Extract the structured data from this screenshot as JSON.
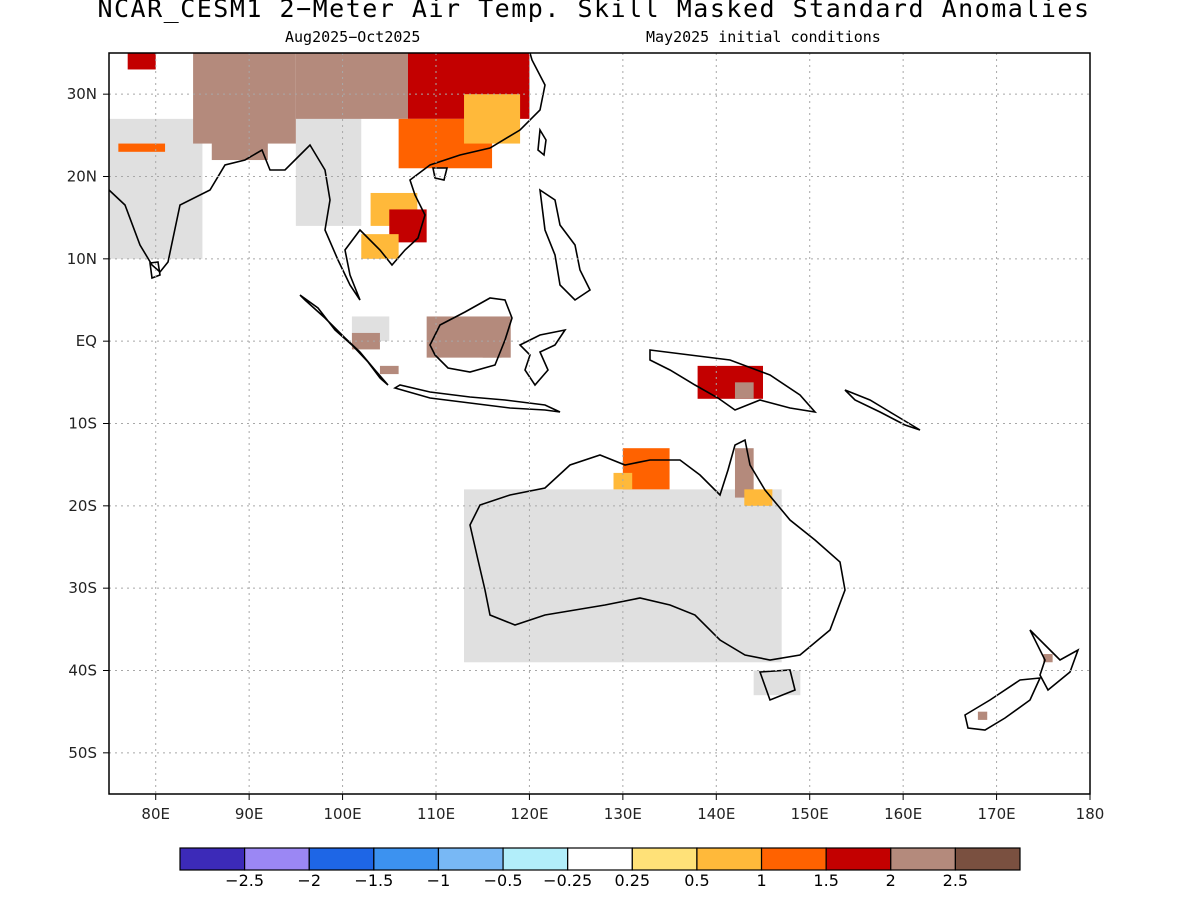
{
  "title": "NCAR_CESM1 2−Meter Air Temp. Skill Masked Standard Anomalies",
  "subtitle_left": "Aug2025−Oct2025",
  "subtitle_right": "May2025 initial conditions",
  "lat_labels": [
    "30N",
    "20N",
    "10N",
    "EQ",
    "10S",
    "20S",
    "30S",
    "40S",
    "50S"
  ],
  "lon_labels": [
    "80E",
    "90E",
    "100E",
    "110E",
    "120E",
    "130E",
    "140E",
    "150E",
    "160E",
    "170E",
    "180"
  ],
  "colorbar": {
    "colors": [
      "#3c2ab8",
      "#9b87f4",
      "#1e66e6",
      "#3c92f0",
      "#78b8f5",
      "#b2eefa",
      "#ffffff",
      "#ffe178",
      "#ffb93a",
      "#ff6200",
      "#c30000",
      "#b48a7c",
      "#7a5040"
    ],
    "labels": [
      "−2.5",
      "−2",
      "−1.5",
      "−1",
      "−0.5",
      "−0.25",
      "0.25",
      "0.5",
      "1",
      "1.5",
      "2",
      "2.5"
    ]
  },
  "chart_data": {
    "type": "heatmap",
    "variable": "2-Meter Air Temp. Skill Masked Standard Anomalies",
    "lon_range": [
      75,
      180
    ],
    "lat_range": [
      -55,
      35
    ],
    "levels": [
      -2.5,
      -2,
      -1.5,
      -1,
      -0.5,
      -0.25,
      0.25,
      0.5,
      1,
      1.5,
      2,
      2.5
    ],
    "masked_color": "#e0e0e0",
    "regions": [
      {
        "lon": [
          84,
          95
        ],
        "lat": [
          24,
          35
        ],
        "value": 2.2
      },
      {
        "lon": [
          95,
          107
        ],
        "lat": [
          27,
          35
        ],
        "value": 2.1
      },
      {
        "lon": [
          107,
          120
        ],
        "lat": [
          27,
          35
        ],
        "value": 1.6
      },
      {
        "lon": [
          106,
          116
        ],
        "lat": [
          21,
          27
        ],
        "value": 1.4
      },
      {
        "lon": [
          113,
          119
        ],
        "lat": [
          24,
          30
        ],
        "value": 0.8
      },
      {
        "lon": [
          86,
          92
        ],
        "lat": [
          22,
          25
        ],
        "value": 2.0
      },
      {
        "lon": [
          77,
          80
        ],
        "lat": [
          33,
          35
        ],
        "value": 1.6
      },
      {
        "lon": [
          76,
          81
        ],
        "lat": [
          23,
          24
        ],
        "value": 1.2
      },
      {
        "lon": [
          103,
          108
        ],
        "lat": [
          14,
          18
        ],
        "value": 0.9
      },
      {
        "lon": [
          105,
          109
        ],
        "lat": [
          12,
          16
        ],
        "value": 1.6
      },
      {
        "lon": [
          102,
          106
        ],
        "lat": [
          10,
          13
        ],
        "value": 0.7
      },
      {
        "lon": [
          109,
          118
        ],
        "lat": [
          -2,
          3
        ],
        "value": 2.1
      },
      {
        "lon": [
          115,
          117
        ],
        "lat": [
          -2,
          0
        ],
        "value": 2.3
      },
      {
        "lon": [
          101,
          104
        ],
        "lat": [
          -1,
          1
        ],
        "value": 2.0
      },
      {
        "lon": [
          104,
          106
        ],
        "lat": [
          -4,
          -3
        ],
        "value": 2.0
      },
      {
        "lon": [
          138,
          145
        ],
        "lat": [
          -7,
          -3
        ],
        "value": 1.5
      },
      {
        "lon": [
          142,
          144
        ],
        "lat": [
          -7,
          -5
        ],
        "value": 2.0
      },
      {
        "lon": [
          130,
          135
        ],
        "lat": [
          -18,
          -13
        ],
        "value": 1.4
      },
      {
        "lon": [
          129,
          131
        ],
        "lat": [
          -18,
          -16
        ],
        "value": 0.9
      },
      {
        "lon": [
          142,
          144
        ],
        "lat": [
          -19,
          -13
        ],
        "value": 2.0
      },
      {
        "lon": [
          143,
          146
        ],
        "lat": [
          -20,
          -18
        ],
        "value": 0.8
      },
      {
        "lon": [
          168,
          169
        ],
        "lat": [
          -46,
          -45
        ],
        "value": 2.0
      },
      {
        "lon": [
          175,
          176
        ],
        "lat": [
          -39,
          -38
        ],
        "value": 2.3
      }
    ],
    "masked_regions": [
      {
        "lon": [
          75,
          85
        ],
        "lat": [
          10,
          27
        ]
      },
      {
        "lon": [
          95,
          102
        ],
        "lat": [
          14,
          30
        ]
      },
      {
        "lon": [
          113,
          147
        ],
        "lat": [
          -39,
          -18
        ]
      },
      {
        "lon": [
          144,
          149
        ],
        "lat": [
          -43,
          -40
        ]
      },
      {
        "lon": [
          101,
          105
        ],
        "lat": [
          0,
          3
        ]
      }
    ],
    "graticule": "dotted"
  }
}
